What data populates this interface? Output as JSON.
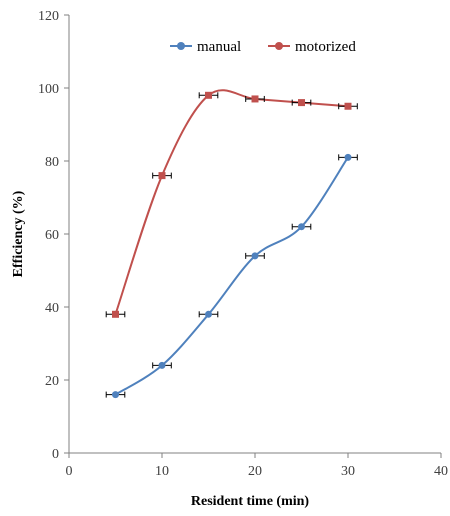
{
  "chart_data": {
    "type": "line",
    "xlabel": "Resident time (min)",
    "ylabel": "Efficiency (%)",
    "xlim": [
      0,
      40
    ],
    "ylim": [
      0,
      120
    ],
    "xticks": [
      0,
      10,
      20,
      30,
      40
    ],
    "yticks": [
      0,
      20,
      40,
      60,
      80,
      100,
      120
    ],
    "grid": false,
    "legend_position": "top",
    "x": [
      5,
      10,
      15,
      20,
      25,
      30
    ],
    "x_error": 1,
    "series": [
      {
        "name": "manual",
        "color": "#4F81BD",
        "marker": "circle",
        "values": [
          16,
          24,
          38,
          54,
          62,
          81
        ]
      },
      {
        "name": "motorized",
        "color": "#C0504D",
        "marker": "square",
        "values": [
          38,
          76,
          98,
          97,
          96,
          95
        ]
      }
    ]
  }
}
